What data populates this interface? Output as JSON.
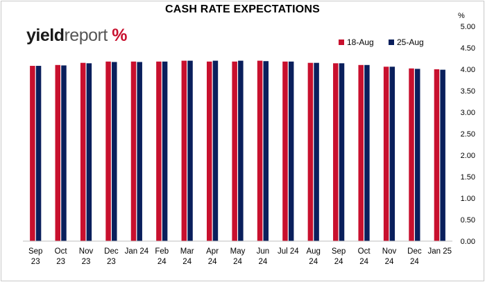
{
  "header": {
    "title": "CASH RATE EXPECTATIONS"
  },
  "logo": {
    "part1": "yield",
    "part2": "report",
    "percent": "%"
  },
  "colors": {
    "series1": "#c8102e",
    "series2": "#0a1f5c",
    "gridline": "#d9d9d9"
  },
  "chart_data": {
    "type": "bar",
    "title": "CASH RATE EXPECTATIONS",
    "ylabel": "%",
    "ylim": [
      0,
      5
    ],
    "yticks": [
      0,
      0.5,
      1,
      1.5,
      2,
      2.5,
      3,
      3.5,
      4,
      4.5,
      5
    ],
    "ytick_labels": [
      "0.00",
      "0.50",
      "1.00",
      "1.50",
      "2.00",
      "2.50",
      "3.00",
      "3.50",
      "4.00",
      "4.50",
      "5.00"
    ],
    "y_axis_side": "right",
    "grid": false,
    "legend_position": "top-right",
    "categories": [
      [
        "Sep",
        "23"
      ],
      [
        "Oct",
        "23"
      ],
      [
        "Nov",
        "23"
      ],
      [
        "Dec",
        "23"
      ],
      [
        "Jan 24",
        ""
      ],
      [
        "Feb",
        "24"
      ],
      [
        "Mar",
        "24"
      ],
      [
        "Apr",
        "24"
      ],
      [
        "May",
        "24"
      ],
      [
        "Jun",
        "24"
      ],
      [
        "Jul 24",
        ""
      ],
      [
        "Aug",
        "24"
      ],
      [
        "Sep",
        "24"
      ],
      [
        "Oct",
        "24"
      ],
      [
        "Nov",
        "24"
      ],
      [
        "Dec",
        "24"
      ],
      [
        "Jan 25",
        ""
      ]
    ],
    "series": [
      {
        "name": "18-Aug",
        "values": [
          4.08,
          4.1,
          4.15,
          4.18,
          4.18,
          4.18,
          4.2,
          4.18,
          4.18,
          4.2,
          4.18,
          4.15,
          4.14,
          4.1,
          4.06,
          4.02,
          4.0
        ]
      },
      {
        "name": "25-Aug",
        "values": [
          4.08,
          4.09,
          4.14,
          4.17,
          4.17,
          4.18,
          4.2,
          4.2,
          4.2,
          4.19,
          4.18,
          4.15,
          4.14,
          4.1,
          4.06,
          4.01,
          3.99
        ]
      }
    ]
  }
}
